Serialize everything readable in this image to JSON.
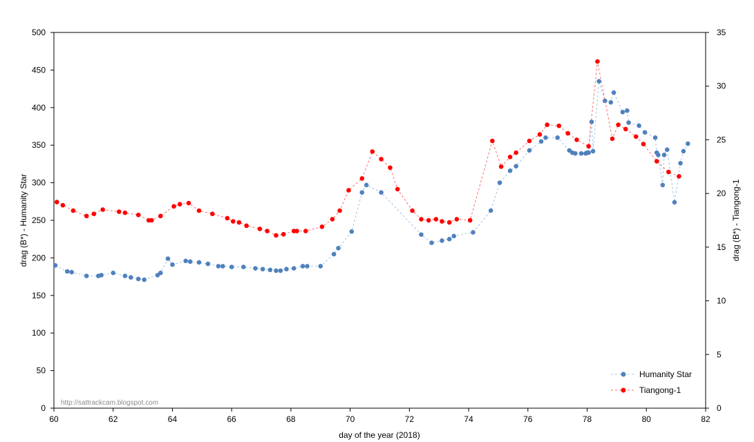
{
  "chart_data": {
    "type": "scatter",
    "xlabel": "day of the year (2018)",
    "ylabel_left": "drag (B*) - Humanity Star",
    "ylabel_right": "drag (B*) - Tiangong-1",
    "xlim": [
      60,
      82
    ],
    "ylim_left": [
      0,
      500
    ],
    "ylim_right": [
      0,
      35
    ],
    "x_ticks": [
      "60",
      "62",
      "64",
      "66",
      "68",
      "70",
      "72",
      "74",
      "76",
      "78",
      "80",
      "82"
    ],
    "y_left_ticks": [
      "0",
      "50",
      "100",
      "150",
      "200",
      "250",
      "300",
      "350",
      "400",
      "450",
      "500"
    ],
    "y_right_ticks": [
      "0",
      "5",
      "10",
      "15",
      "20",
      "25",
      "30",
      "35"
    ],
    "grid": false,
    "legend_position": "bottom-right",
    "watermark": "http://sattrackcam.blogspot.com",
    "series": [
      {
        "name": "Humanity Star",
        "axis": "left",
        "color": "#4f81bd",
        "line_color": "#9dc3e6",
        "x": [
          60.05,
          60.45,
          60.6,
          61.1,
          61.5,
          61.6,
          62.0,
          62.4,
          62.6,
          62.85,
          63.05,
          63.5,
          63.6,
          63.85,
          64.0,
          64.45,
          64.6,
          64.9,
          65.2,
          65.55,
          65.7,
          66.0,
          66.4,
          66.8,
          67.05,
          67.3,
          67.5,
          67.65,
          67.85,
          68.1,
          68.4,
          68.55,
          69.0,
          69.45,
          69.6,
          70.05,
          70.4,
          70.55,
          71.05,
          72.4,
          72.75,
          73.1,
          73.35,
          73.5,
          74.15,
          74.75,
          75.05,
          75.4,
          75.6,
          76.05,
          76.45,
          76.6,
          77.0,
          77.4,
          77.5,
          77.6,
          77.8,
          77.95,
          78.0,
          78.05,
          78.15,
          78.2,
          78.4,
          78.6,
          78.8,
          78.9,
          79.2,
          79.35,
          79.4,
          79.75,
          79.95,
          80.3,
          80.35,
          80.4,
          80.55,
          80.6,
          80.7,
          80.95,
          81.15,
          81.25,
          81.4
        ],
        "y": [
          190,
          182,
          181,
          176,
          176,
          177,
          180,
          176,
          174,
          172,
          171,
          177,
          180,
          199,
          191,
          196,
          195,
          194,
          192,
          189,
          189,
          188,
          188,
          186,
          185,
          184,
          183,
          183,
          185,
          186,
          189,
          189,
          189,
          205,
          213,
          235,
          287,
          297,
          287,
          231,
          220,
          223,
          225,
          229,
          234,
          263,
          300,
          316,
          322,
          343,
          355,
          360,
          360,
          343,
          340,
          339,
          339,
          339,
          340,
          340,
          381,
          342,
          435,
          409,
          407,
          420,
          394,
          396,
          380,
          376,
          367,
          360,
          340,
          337,
          297,
          337,
          344,
          274,
          326,
          342,
          352
        ]
      },
      {
        "name": "Tiangong-1",
        "axis": "right",
        "color": "#ff0000",
        "line_color": "#ff6666",
        "x": [
          60.1,
          60.3,
          60.65,
          61.1,
          61.35,
          61.65,
          62.2,
          62.4,
          62.85,
          63.2,
          63.3,
          63.6,
          64.05,
          64.25,
          64.55,
          64.9,
          65.35,
          65.85,
          66.05,
          66.25,
          66.5,
          66.95,
          67.2,
          67.5,
          67.75,
          68.1,
          68.2,
          68.5,
          69.05,
          69.4,
          69.65,
          69.95,
          70.4,
          70.75,
          71.05,
          71.35,
          71.6,
          72.1,
          72.4,
          72.65,
          72.9,
          73.1,
          73.35,
          73.6,
          74.05,
          74.8,
          75.1,
          75.4,
          75.6,
          76.05,
          76.4,
          76.65,
          77.05,
          77.35,
          77.65,
          78.05,
          78.35,
          78.85,
          79.05,
          79.3,
          79.65,
          79.9,
          80.35,
          80.75,
          81.1
        ],
        "y": [
          19.2,
          18.9,
          18.4,
          17.9,
          18.1,
          18.5,
          18.3,
          18.2,
          18.0,
          17.5,
          17.5,
          17.9,
          18.8,
          19.0,
          19.1,
          18.4,
          18.1,
          17.7,
          17.4,
          17.3,
          17.0,
          16.7,
          16.5,
          16.1,
          16.2,
          16.5,
          16.5,
          16.5,
          16.9,
          17.6,
          18.4,
          20.3,
          21.4,
          23.9,
          23.2,
          22.4,
          20.4,
          18.4,
          17.6,
          17.5,
          17.6,
          17.4,
          17.3,
          17.6,
          17.5,
          24.9,
          22.5,
          23.4,
          23.8,
          24.9,
          25.5,
          26.4,
          26.3,
          25.6,
          25.0,
          24.4,
          32.3,
          25.1,
          26.4,
          26.0,
          25.3,
          24.6,
          23.0,
          22.0,
          21.6
        ]
      }
    ]
  }
}
